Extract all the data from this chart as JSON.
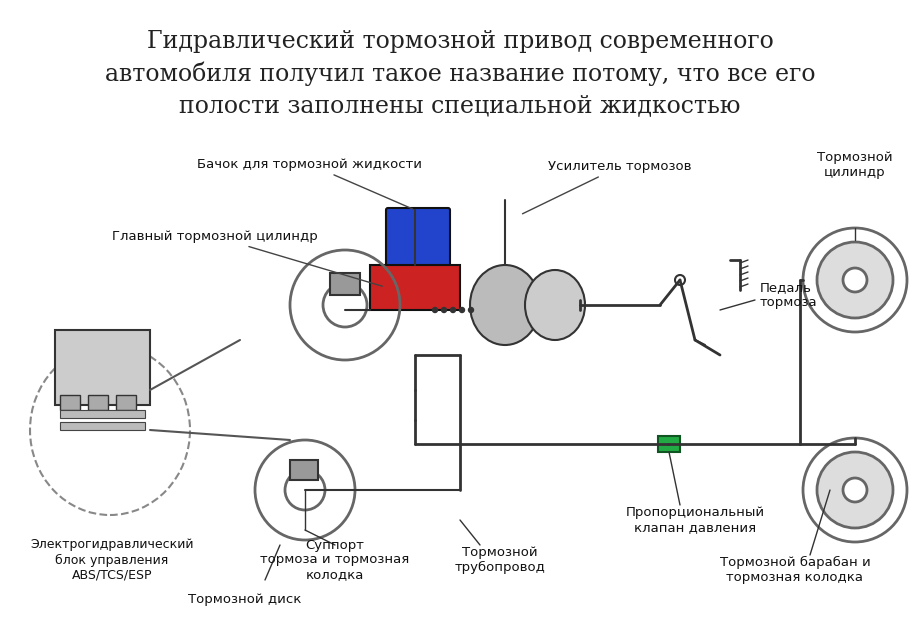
{
  "title_line1": "Гидравлический тормозной привод современного",
  "title_line2": "автомобиля получил такое название потому, что все его",
  "title_line3": "полости заполнены специальной жидкостью",
  "title_fontsize": 17,
  "bg_color": "#ffffff",
  "labels": {
    "bachok": "Бачок для тормозной жидкости",
    "usilitel": "Усилитель тормозов",
    "glavny": "Главный тормозной цилиндр",
    "pedal": "Педаль\nтормоза",
    "torm_cilind": "Тормозной\nцилиндр",
    "electro": "Электрогидравлический\nблок управления\nABS/TCS/ESP",
    "suppoort": "Суппорт\nтормоза и тормозная\nколодка",
    "torm_disk": "Тормозной диск",
    "torm_truba": "Тормозной\nтрубопровод",
    "prop_valve": "Пропорциональный\nклапан давления",
    "torm_drum": "Тормозной барабан и\nтормозная колодка"
  },
  "diagram_image_placeholder": true
}
